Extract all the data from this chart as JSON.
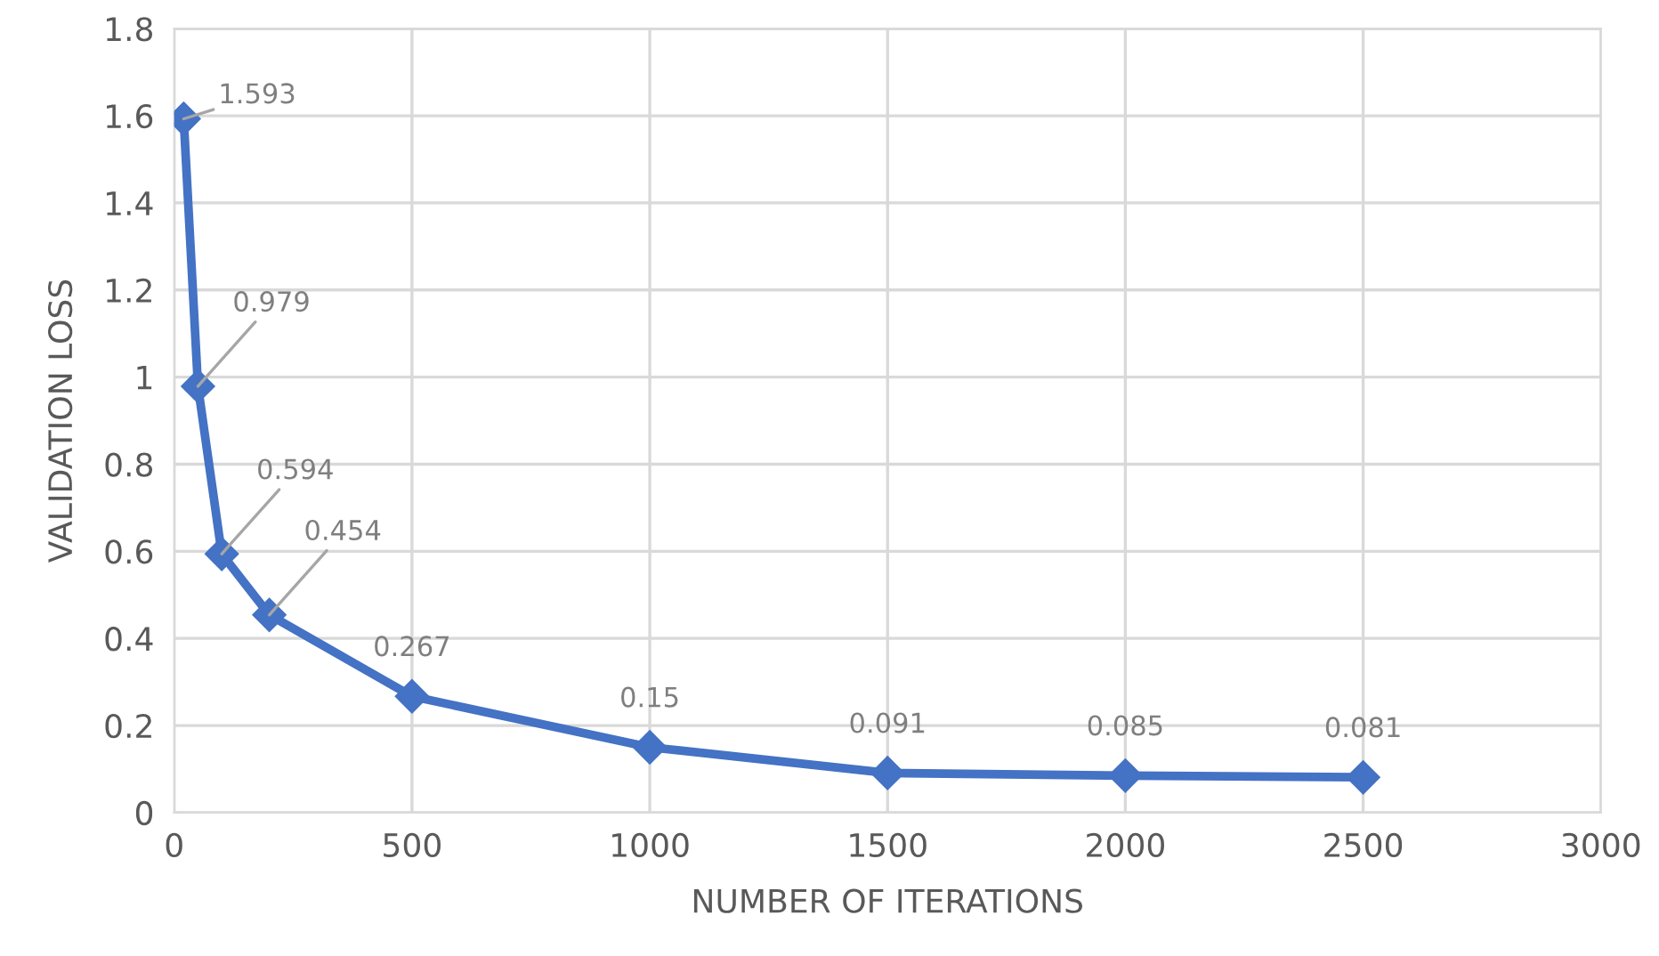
{
  "chart_data": {
    "type": "line",
    "xlabel": "NUMBER OF ITERATIONS",
    "ylabel": "VALIDATION LOSS",
    "x": [
      20,
      50,
      100,
      200,
      500,
      1000,
      1500,
      2000,
      2500
    ],
    "series": [
      {
        "color": "#4472c4",
        "values": [
          1.593,
          0.979,
          0.594,
          0.454,
          0.267,
          0.15,
          0.091,
          0.085,
          0.081
        ]
      }
    ],
    "xlim": [
      0,
      3000
    ],
    "xticks": [
      0,
      500,
      1000,
      1500,
      2000,
      2500,
      3000
    ],
    "ylim": [
      0,
      1.8
    ],
    "yticks": [
      0,
      0.2,
      0.4,
      0.6,
      0.8,
      1,
      1.2,
      1.4,
      1.6,
      1.8
    ],
    "grid": true,
    "marker": "diamond",
    "line_style": "solid",
    "data_labels": true
  }
}
